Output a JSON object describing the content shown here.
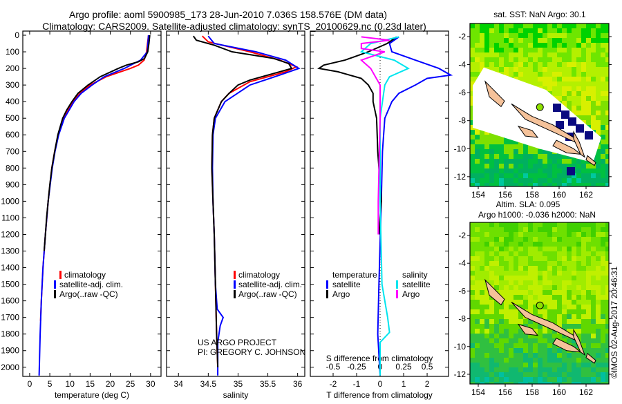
{
  "title_line1": "Argo profile: aoml 5900985_173 28-Jun-2010 7.036S 158.576E (DM data)",
  "title_line2": "Climatology: CARS2009. Satellite-adjusted climatology: synTS_20100629.nc (0.23d later)",
  "project_line1": "US ARGO PROJECT",
  "project_line2": "PI: GREGORY C. JOHNSON",
  "copyright": "©IMOS 02-Aug-2017 20:46:31",
  "colors": {
    "climatology": "#ff0000",
    "satellite": "#0000ff",
    "argo": "#000000",
    "sal_satellite": "#00e5ee",
    "sal_argo": "#ff00ff"
  },
  "chart_data": [
    {
      "type": "line",
      "xlabel": "temperature (deg C)",
      "ylabel": "depth",
      "xlim": [
        -1.7,
        32.6
      ],
      "ylim": [
        -25,
        2055
      ],
      "xticks": [
        "0",
        "5",
        "10",
        "15",
        "20",
        "25",
        "30"
      ],
      "xtick_values": [
        0,
        5,
        10,
        15,
        20,
        25,
        30
      ],
      "yticks": [
        "0",
        "100",
        "200",
        "300",
        "400",
        "500",
        "600",
        "700",
        "800",
        "900",
        "1000",
        "1100",
        "1200",
        "1300",
        "1400",
        "1500",
        "1600",
        "1700",
        "1800",
        "1900",
        "2000"
      ],
      "ytick_values": [
        0,
        100,
        200,
        300,
        400,
        500,
        600,
        700,
        800,
        900,
        1000,
        1100,
        1200,
        1300,
        1400,
        1500,
        1600,
        1700,
        1800,
        1900,
        2000
      ],
      "legend": [
        "climatology",
        "satellite-adj. clim.",
        "Argo(..raw -QC)"
      ],
      "series": [
        {
          "name": "climatology",
          "color": "#ff0000",
          "depth": [
            0,
            100,
            150,
            180,
            200,
            250,
            300,
            350,
            400,
            500,
            600,
            700,
            800,
            1000,
            1200,
            1400,
            1600,
            1720
          ],
          "values": [
            29.5,
            29,
            28.4,
            27,
            25,
            19,
            15,
            12.5,
            10.8,
            8.4,
            7.1,
            6.2,
            5.5,
            4.6,
            3.9,
            3.3,
            2.9,
            2.7
          ]
        },
        {
          "name": "satellite-adj. clim.",
          "color": "#0000ff",
          "depth": [
            0,
            100,
            150,
            200,
            250,
            300,
            350,
            400,
            500,
            600,
            700,
            800,
            1000,
            1200,
            1400,
            1600,
            1800,
            2000,
            2050
          ],
          "values": [
            29.5,
            29.2,
            27.5,
            23.5,
            18.5,
            15.5,
            12.8,
            11,
            8.6,
            7.2,
            6.3,
            5.6,
            4.6,
            3.9,
            3.3,
            2.9,
            2.6,
            2.4,
            2.35
          ]
        },
        {
          "name": "Argo(..raw -QC)",
          "color": "#000000",
          "depth": [
            0,
            50,
            100,
            140,
            160,
            180,
            200,
            250,
            300,
            350,
            400,
            450,
            500,
            600,
            700,
            800,
            900,
            1000,
            1100,
            1200,
            1300
          ],
          "values": [
            29.8,
            29.6,
            29.3,
            28.5,
            27,
            24,
            22,
            17.5,
            14.5,
            12,
            10.5,
            9.2,
            8.2,
            7,
            6.2,
            5.5,
            5,
            4.6,
            4.2,
            3.9,
            3.6
          ]
        }
      ]
    },
    {
      "type": "line",
      "xlabel": "salinity",
      "ylim": [
        -25,
        2055
      ],
      "xlim": [
        33.8,
        36.12
      ],
      "xticks": [
        "34",
        "34.5",
        "35",
        "35.5",
        "36"
      ],
      "xtick_values": [
        34,
        34.5,
        35,
        35.5,
        36
      ],
      "legend": [
        "climatology",
        "satellite-adj. clim.",
        "Argo(..raw -QC)"
      ],
      "series": [
        {
          "name": "climatology",
          "color": "#ff0000",
          "depth": [
            5,
            40,
            100,
            150,
            190,
            220,
            280,
            350,
            400,
            500,
            600,
            800,
            1000,
            1200,
            1500,
            1800,
            2000
          ],
          "values": [
            34.4,
            34.5,
            35.2,
            35.7,
            35.98,
            35.8,
            35.2,
            34.85,
            34.72,
            34.6,
            34.57,
            34.56,
            34.58,
            34.6,
            34.62,
            34.64,
            34.66
          ]
        },
        {
          "name": "satellite-adj. clim.",
          "color": "#0000ff",
          "depth": [
            5,
            50,
            100,
            150,
            200,
            240,
            300,
            400,
            500,
            600,
            800,
            1000,
            1200,
            1500,
            1650,
            1700,
            1750,
            1850,
            2050
          ],
          "values": [
            34.5,
            34.6,
            35.3,
            35.8,
            36.02,
            35.7,
            35.2,
            34.78,
            34.62,
            34.58,
            34.57,
            34.58,
            34.6,
            34.62,
            34.65,
            34.75,
            34.7,
            34.66,
            34.66
          ]
        },
        {
          "name": "Argo(..raw -QC)",
          "color": "#000000",
          "depth": [
            5,
            30,
            60,
            100,
            140,
            170,
            200,
            230,
            270,
            300,
            350,
            400,
            500,
            600,
            800,
            1000,
            1200,
            1500,
            1800,
            2000
          ],
          "values": [
            34.25,
            34.3,
            34.6,
            34.9,
            35.6,
            35.85,
            35.9,
            35.6,
            35.2,
            35.0,
            34.85,
            34.72,
            34.6,
            34.57,
            34.56,
            34.58,
            34.6,
            34.62,
            34.64,
            34.66
          ]
        }
      ]
    },
    {
      "type": "line",
      "xlabel": "T difference from climatology",
      "x2label": "S difference from climatology",
      "ylim": [
        -25,
        2055
      ],
      "xlim": [
        -2.97,
        2.91
      ],
      "xticks": [
        "-2",
        "-1",
        "0",
        "1",
        "2"
      ],
      "xtick_values": [
        -2,
        -1,
        0,
        1,
        2
      ],
      "x2ticks": [
        "-0.5",
        "-0.25",
        "0",
        "0.25",
        "0.5"
      ],
      "x2tick_values": [
        -0.5,
        -0.25,
        0,
        0.25,
        0.5
      ],
      "legend_temperature_title": "temperature",
      "legend_salinity_title": "salinity",
      "legend_temperature": [
        "satellite",
        "Argo"
      ],
      "legend_salinity": [
        "satellite",
        "Argo"
      ],
      "series": [
        {
          "name": "T satellite",
          "axis": "T",
          "color": "#0000ff",
          "depth": [
            10,
            50,
            100,
            150,
            200,
            240,
            260,
            300,
            350,
            400,
            500,
            700,
            1000,
            1500,
            1800,
            2050
          ],
          "values": [
            0.8,
            0.4,
            0.5,
            1.5,
            2.5,
            3,
            2,
            1.5,
            0.8,
            0.5,
            0.2,
            0.1,
            0.05,
            -0.05,
            -0.1,
            0
          ]
        },
        {
          "name": "T Argo",
          "axis": "T",
          "color": "#000000",
          "depth": [
            10,
            50,
            100,
            150,
            180,
            200,
            220,
            260,
            300,
            350,
            400,
            500,
            700,
            1000,
            1200
          ],
          "values": [
            0.7,
            0.3,
            -0.5,
            -1.5,
            -2.4,
            -2.6,
            -1.8,
            -0.8,
            -0.5,
            -0.3,
            -0.3,
            -0.15,
            -0.1,
            0.05,
            -0.05
          ]
        },
        {
          "name": "S satellite",
          "axis": "S",
          "color": "#00e5ee",
          "depth": [
            10,
            50,
            100,
            150,
            200,
            250,
            300,
            500,
            1000,
            1500,
            1700,
            1790,
            1850,
            2050
          ],
          "values": [
            0.2,
            -0.1,
            -0.2,
            0.15,
            0.3,
            0.1,
            0.05,
            0,
            0,
            0.02,
            0.08,
            0.1,
            0,
            0
          ]
        },
        {
          "name": "S Argo",
          "axis": "S",
          "color": "#ff00ff",
          "depth": [
            10,
            30,
            50,
            80,
            100,
            150,
            200,
            300,
            500,
            1000,
            1200
          ],
          "values": [
            -0.2,
            0.1,
            -0.2,
            -0.2,
            0.05,
            -0.2,
            -0.1,
            0,
            0,
            -0.02,
            -0.02
          ]
        }
      ]
    }
  ],
  "maps": [
    {
      "title": "sat. SST: NaN Argo: 30.1",
      "lon_ticks": [
        "154",
        "156",
        "158",
        "160",
        "162"
      ],
      "lat_ticks": [
        "-2",
        "-4",
        "-6",
        "-8",
        "-10",
        "-12"
      ]
    },
    {
      "title_line1": "Altim. SLA: 0.095",
      "title_line2": "Argo h1000: -0.036 h2000: NaN",
      "lon_ticks": [
        "154",
        "156",
        "158",
        "160",
        "162"
      ],
      "lat_ticks": [
        "-2",
        "-4",
        "-6",
        "-8",
        "-10",
        "-12"
      ]
    }
  ]
}
